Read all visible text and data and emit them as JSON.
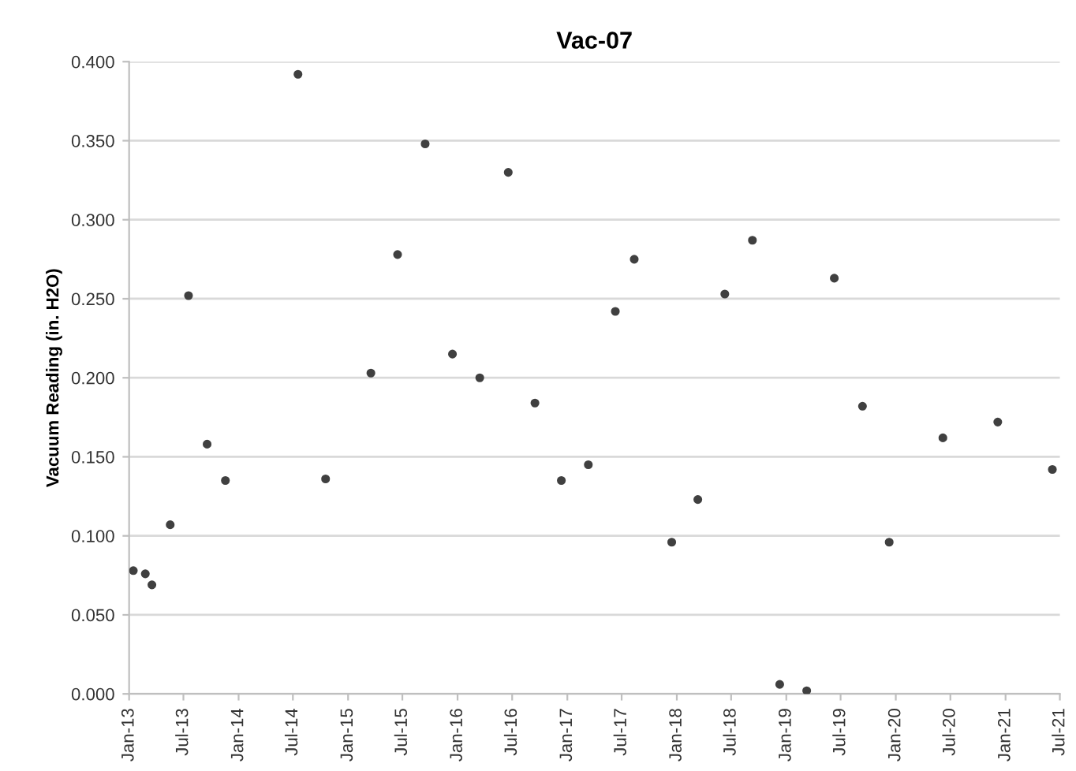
{
  "chart_data": {
    "type": "scatter",
    "title": "Vac-07",
    "ylabel": "Vacuum Reading (in. H2O)",
    "x": [
      "2013-01-15",
      "2013-02-24",
      "2013-03-18",
      "2013-05-18",
      "2013-07-18",
      "2013-09-18",
      "2013-11-18",
      "2014-07-18",
      "2014-10-18",
      "2015-03-18",
      "2015-06-15",
      "2015-09-15",
      "2015-12-15",
      "2016-03-15",
      "2016-06-18",
      "2016-09-15",
      "2016-12-12",
      "2017-03-12",
      "2017-06-10",
      "2017-08-12",
      "2017-12-15",
      "2018-03-12",
      "2018-06-10",
      "2018-09-10",
      "2018-12-10",
      "2019-03-10",
      "2019-06-10",
      "2019-09-12",
      "2019-12-10",
      "2020-06-06",
      "2020-12-06",
      "2021-06-06"
    ],
    "series": [
      {
        "color": "#404040",
        "values": [
          0.078,
          0.076,
          0.069,
          0.107,
          0.252,
          0.158,
          0.135,
          0.392,
          0.136,
          0.203,
          0.278,
          0.348,
          0.215,
          0.2,
          0.33,
          0.184,
          0.135,
          0.145,
          0.242,
          0.275,
          0.096,
          0.123,
          0.253,
          0.287,
          0.006,
          0.002,
          0.263,
          0.182,
          0.096,
          0.162,
          0.172,
          0.142
        ]
      }
    ],
    "xlim": [
      "2013-01-01",
      "2021-07-01"
    ],
    "xticks": [
      {
        "value": "2013-01-01",
        "label": "Jan-13"
      },
      {
        "value": "2013-07-01",
        "label": "Jul-13"
      },
      {
        "value": "2014-01-01",
        "label": "Jan-14"
      },
      {
        "value": "2014-07-01",
        "label": "Jul-14"
      },
      {
        "value": "2015-01-01",
        "label": "Jan-15"
      },
      {
        "value": "2015-07-01",
        "label": "Jul-15"
      },
      {
        "value": "2016-01-01",
        "label": "Jan-16"
      },
      {
        "value": "2016-07-01",
        "label": "Jul-16"
      },
      {
        "value": "2017-01-01",
        "label": "Jan-17"
      },
      {
        "value": "2017-07-01",
        "label": "Jul-17"
      },
      {
        "value": "2018-01-01",
        "label": "Jan-18"
      },
      {
        "value": "2018-07-01",
        "label": "Jul-18"
      },
      {
        "value": "2019-01-01",
        "label": "Jan-19"
      },
      {
        "value": "2019-07-01",
        "label": "Jul-19"
      },
      {
        "value": "2020-01-01",
        "label": "Jan-20"
      },
      {
        "value": "2020-07-01",
        "label": "Jul-20"
      },
      {
        "value": "2021-01-01",
        "label": "Jan-21"
      },
      {
        "value": "2021-07-01",
        "label": "Jul-21"
      }
    ],
    "ylim": [
      0,
      0.4
    ],
    "yticks": [
      {
        "value": 0,
        "label": "0.000"
      },
      {
        "value": 0.05,
        "label": "0.050"
      },
      {
        "value": 0.1,
        "label": "0.100"
      },
      {
        "value": 0.15,
        "label": "0.150"
      },
      {
        "value": 0.2,
        "label": "0.200"
      },
      {
        "value": 0.25,
        "label": "0.250"
      },
      {
        "value": 0.3,
        "label": "0.300"
      },
      {
        "value": 0.35,
        "label": "0.350"
      },
      {
        "value": 0.4,
        "label": "0.400"
      }
    ],
    "grid": "y",
    "marker": "circle"
  }
}
